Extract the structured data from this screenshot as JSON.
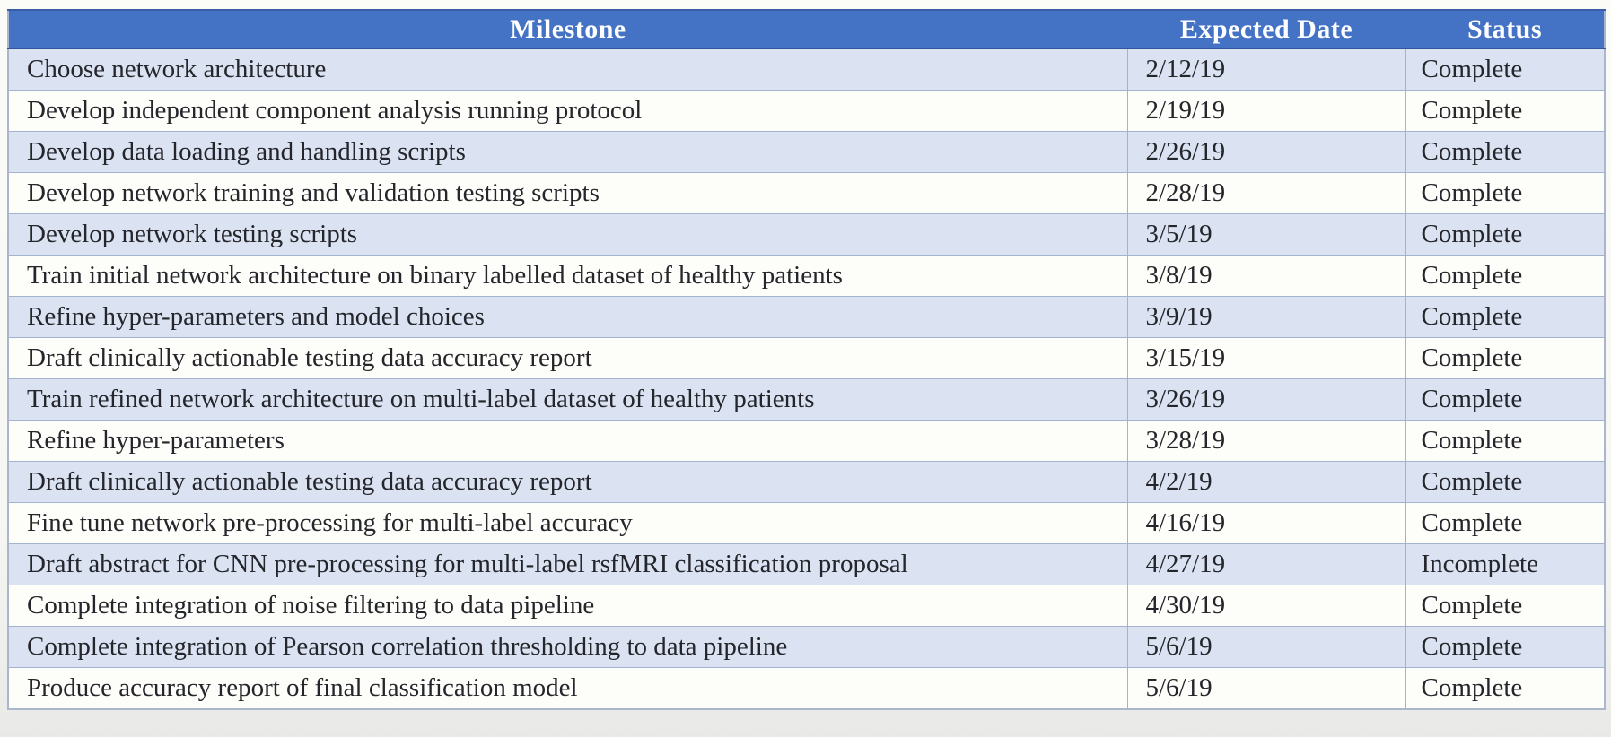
{
  "table": {
    "columns": [
      {
        "key": "milestone",
        "label": "Milestone"
      },
      {
        "key": "date",
        "label": "Expected Date"
      },
      {
        "key": "status",
        "label": "Status"
      }
    ],
    "rows": [
      {
        "milestone": "Choose network architecture",
        "date": "2/12/19",
        "status": "Complete"
      },
      {
        "milestone": "Develop independent component analysis running protocol",
        "date": "2/19/19",
        "status": "Complete"
      },
      {
        "milestone": "Develop data loading and handling scripts",
        "date": "2/26/19",
        "status": "Complete"
      },
      {
        "milestone": "Develop network training and validation testing scripts",
        "date": "2/28/19",
        "status": "Complete"
      },
      {
        "milestone": "Develop network testing scripts",
        "date": "3/5/19",
        "status": "Complete"
      },
      {
        "milestone": "Train initial network architecture on binary labelled dataset of healthy patients",
        "date": "3/8/19",
        "status": "Complete"
      },
      {
        "milestone": "Refine hyper-parameters and model choices",
        "date": "3/9/19",
        "status": "Complete"
      },
      {
        "milestone": "Draft clinically actionable testing data accuracy report",
        "date": "3/15/19",
        "status": "Complete"
      },
      {
        "milestone": "Train refined network architecture on multi-label dataset of healthy patients",
        "date": "3/26/19",
        "status": "Complete"
      },
      {
        "milestone": "Refine hyper-parameters",
        "date": "3/28/19",
        "status": "Complete"
      },
      {
        "milestone": "Draft clinically actionable testing data accuracy report",
        "date": "4/2/19",
        "status": "Complete"
      },
      {
        "milestone": "Fine tune network pre-processing for multi-label accuracy",
        "date": "4/16/19",
        "status": "Complete"
      },
      {
        "milestone": "Draft abstract for CNN pre-processing for multi-label rsfMRI classification proposal",
        "date": "4/27/19",
        "status": "Incomplete"
      },
      {
        "milestone": "Complete integration of noise filtering to data pipeline",
        "date": "4/30/19",
        "status": "Complete"
      },
      {
        "milestone": "Complete integration of Pearson correlation thresholding to data pipeline",
        "date": "5/6/19",
        "status": "Complete"
      },
      {
        "milestone": "Produce accuracy report of final classification model",
        "date": "5/6/19",
        "status": "Complete"
      }
    ]
  },
  "colors": {
    "header_bg": "#4472C4",
    "header_text": "#FFFFFF",
    "banded_row_bg": "#DBE3F3",
    "plain_row_bg": "#FDFDFA",
    "grid_border": "#A3B2CF",
    "body_text": "#24262B"
  }
}
